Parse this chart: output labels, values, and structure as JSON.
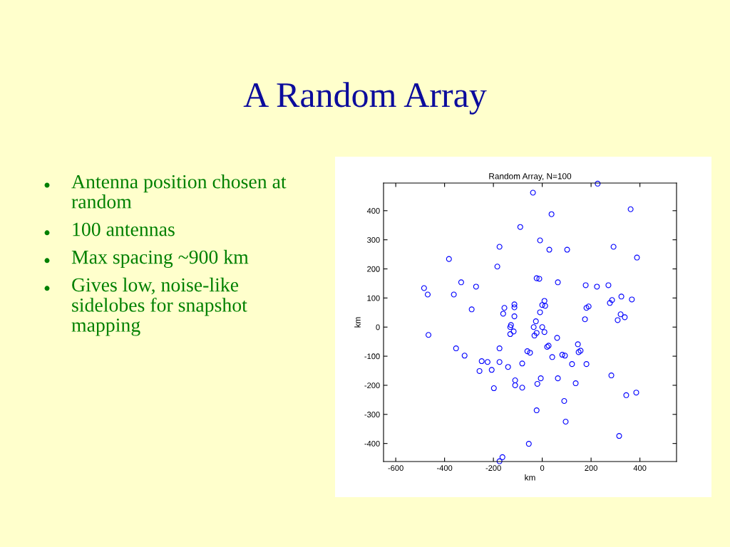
{
  "chart_data": {
    "type": "scatter",
    "title": "Random Array, N=100",
    "xlabel": "km",
    "ylabel": "km",
    "annotations": [
      "A Random Array",
      "Antenna position chosen at random",
      "100 antennas",
      "Max spacing ~900 km",
      "Gives low, noise-like sidelobes for snapshot mapping"
    ],
    "series": [
      {
        "color": "#0000ff",
        "x": [
          -38,
          227,
          38,
          362,
          -90,
          -9,
          29,
          102,
          -175,
          292,
          388,
          -382,
          -184,
          -23,
          -12,
          64,
          -332,
          -271,
          178,
          224,
          271,
          -484,
          -469,
          -362,
          9,
          286,
          277,
          324,
          367,
          181,
          190,
          -155,
          -114,
          -114,
          0,
          12,
          -289,
          -160,
          -9,
          -114,
          321,
          338,
          309,
          175,
          -26,
          -131,
          -128,
          -35,
          0,
          9,
          -117,
          -131,
          -23,
          -32,
          61,
          -466,
          -353,
          -61,
          -50,
          -175,
          -318,
          26,
          20,
          146,
          157,
          149,
          82,
          93,
          41,
          -248,
          -224,
          -175,
          -140,
          -82,
          122,
          181,
          -257,
          -207,
          283,
          -111,
          -111,
          -6,
          64,
          137,
          -20,
          -82,
          -198,
          344,
          385,
          90,
          -23,
          96,
          315,
          -55,
          -163,
          -175
        ],
        "values": [
          462,
          493,
          388,
          405,
          344,
          298,
          266,
          266,
          276,
          276,
          239,
          234,
          208,
          168,
          166,
          154,
          154,
          139,
          144,
          139,
          144,
          134,
          112,
          112,
          90,
          93,
          83,
          105,
          95,
          66,
          71,
          66,
          78,
          68,
          76,
          73,
          61,
          46,
          51,
          37,
          44,
          34,
          24,
          27,
          20,
          0,
          7,
          0,
          0,
          -17,
          -15,
          -24,
          -20,
          -29,
          -37,
          -27,
          -73,
          -83,
          -88,
          -73,
          -98,
          -64,
          -68,
          -59,
          -81,
          -86,
          -95,
          -98,
          -103,
          -117,
          -120,
          -120,
          -137,
          -125,
          -127,
          -127,
          -151,
          -147,
          -166,
          -183,
          -200,
          -176,
          -176,
          -193,
          -195,
          -208,
          -210,
          -234,
          -225,
          -254,
          -286,
          -325,
          -374,
          -401,
          -447,
          -461
        ]
      }
    ],
    "marker": "circle",
    "xlim": [
      -650,
      550
    ],
    "ylim": [
      -462,
      495
    ],
    "xticks": [
      -600,
      -400,
      -200,
      0,
      200,
      400
    ],
    "yticks": [
      -400,
      -300,
      -200,
      -100,
      0,
      100,
      200,
      300,
      400
    ],
    "grid": false
  }
}
